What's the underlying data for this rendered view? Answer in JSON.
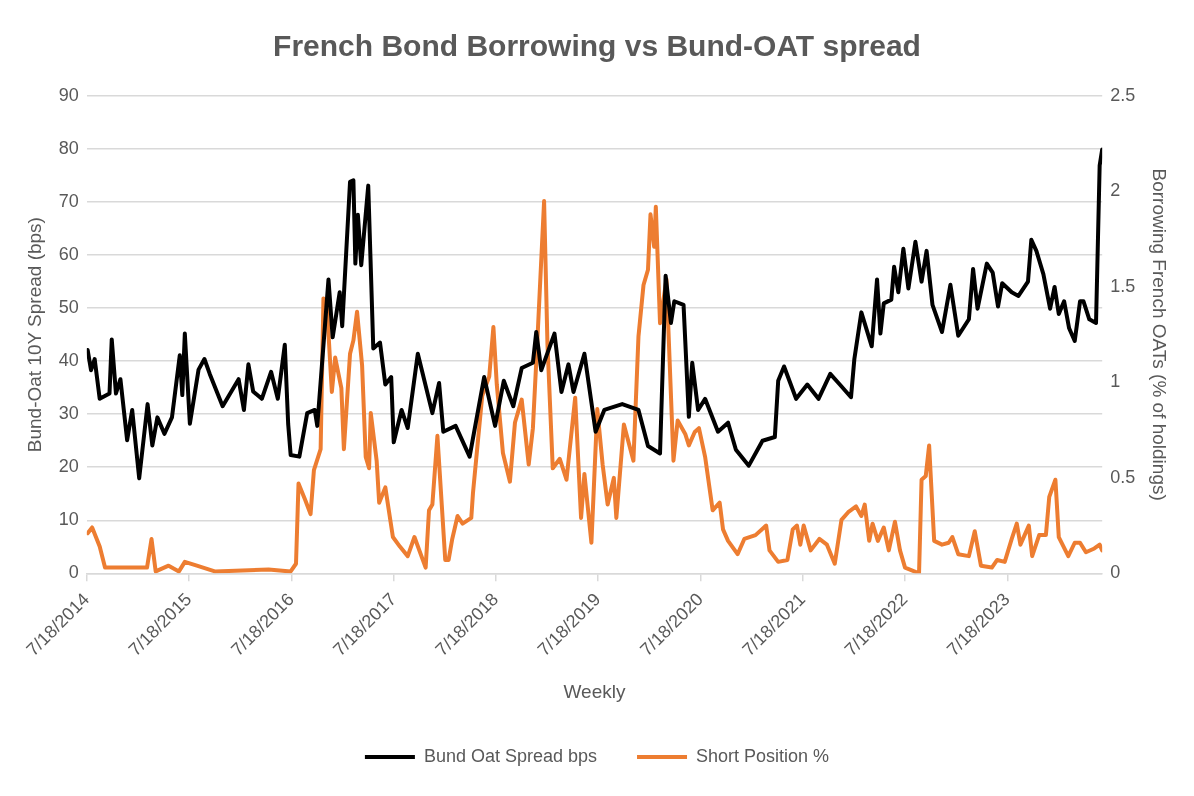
{
  "chart_data": {
    "type": "line",
    "title": "French Bond Borrowing vs Bund-OAT spread",
    "xlabel": "Weekly",
    "ylabel": "Bund-Oat 10Y Spread (bps)",
    "y2label": "Borrowing French OATs (% of holdings)",
    "xlim": [
      "2014-07-18",
      "2024-06-21"
    ],
    "xticks": [
      {
        "value": "2014-07-18",
        "label": "7/18/2014"
      },
      {
        "value": "2015-07-18",
        "label": "7/18/2015"
      },
      {
        "value": "2016-07-18",
        "label": "7/18/2016"
      },
      {
        "value": "2017-07-18",
        "label": "7/18/2017"
      },
      {
        "value": "2018-07-18",
        "label": "7/18/2018"
      },
      {
        "value": "2019-07-18",
        "label": "7/18/2019"
      },
      {
        "value": "2020-07-18",
        "label": "7/18/2020"
      },
      {
        "value": "2021-07-18",
        "label": "7/18/2021"
      },
      {
        "value": "2022-07-18",
        "label": "7/18/2022"
      },
      {
        "value": "2023-07-18",
        "label": "7/18/2023"
      }
    ],
    "ylim": [
      0,
      90
    ],
    "yticks": [
      0,
      10,
      20,
      30,
      40,
      50,
      60,
      70,
      80,
      90
    ],
    "y2lim": [
      0,
      2.5
    ],
    "y2ticks": [
      0,
      0.5,
      1,
      1.5,
      2,
      2.5
    ],
    "grid": "y",
    "legend": "bottom",
    "marker": "none",
    "line_style": "solid",
    "series": [
      {
        "name": "Bund Oat Spread bps",
        "color": "#000000",
        "axis": "y",
        "x": [
          "2014-07-21",
          "2014-08-02",
          "2014-08-15",
          "2014-09-02",
          "2014-10-07",
          "2014-10-15",
          "2014-10-30",
          "2014-11-15",
          "2014-12-09",
          "2014-12-27",
          "2015-01-21",
          "2015-02-20",
          "2015-03-09",
          "2015-03-27",
          "2015-04-21",
          "2015-05-18",
          "2015-06-15",
          "2015-06-24",
          "2015-07-03",
          "2015-07-21",
          "2015-08-21",
          "2015-09-11",
          "2015-09-30",
          "2015-11-15",
          "2016-01-11",
          "2016-01-30",
          "2016-02-15",
          "2016-03-03",
          "2016-04-03",
          "2016-05-06",
          "2016-05-30",
          "2016-06-24",
          "2016-07-06",
          "2016-07-15",
          "2016-08-15",
          "2016-09-12",
          "2016-10-09",
          "2016-10-18",
          "2016-11-27",
          "2016-12-12",
          "2017-01-06",
          "2017-01-15",
          "2017-02-12",
          "2017-02-24",
          "2017-03-03",
          "2017-03-12",
          "2017-03-24",
          "2017-04-18",
          "2017-05-06",
          "2017-05-30",
          "2017-06-18",
          "2017-07-09",
          "2017-07-18",
          "2017-08-15",
          "2017-09-06",
          "2017-10-12",
          "2017-12-03",
          "2017-12-27",
          "2018-01-11",
          "2018-02-24",
          "2018-04-15",
          "2018-06-06",
          "2018-07-15",
          "2018-08-15",
          "2018-09-18",
          "2018-10-18",
          "2018-11-27",
          "2018-12-09",
          "2018-12-27",
          "2019-02-12",
          "2019-03-09",
          "2019-04-03",
          "2019-04-21",
          "2019-05-30",
          "2019-07-09",
          "2019-08-09",
          "2019-10-12",
          "2019-12-09",
          "2020-01-12",
          "2020-02-24",
          "2020-03-15",
          "2020-04-03",
          "2020-04-15",
          "2020-05-18",
          "2020-06-06",
          "2020-06-18",
          "2020-07-09",
          "2020-08-03",
          "2020-09-18",
          "2020-10-24",
          "2020-11-21",
          "2021-01-06",
          "2021-02-24",
          "2021-04-09",
          "2021-04-21",
          "2021-05-12",
          "2021-06-24",
          "2021-08-03",
          "2021-09-12",
          "2021-10-24",
          "2021-11-27",
          "2022-01-06",
          "2022-01-18",
          "2022-02-12",
          "2022-03-21",
          "2022-04-09",
          "2022-04-21",
          "2022-05-03",
          "2022-05-30",
          "2022-06-09",
          "2022-06-24",
          "2022-07-12",
          "2022-07-30",
          "2022-08-24",
          "2022-09-15",
          "2022-10-03",
          "2022-10-24",
          "2022-11-27",
          "2022-12-27",
          "2023-01-24",
          "2023-03-03",
          "2023-03-18",
          "2023-04-03",
          "2023-05-06",
          "2023-05-27",
          "2023-06-15",
          "2023-06-30",
          "2023-08-03",
          "2023-08-27",
          "2023-09-30",
          "2023-10-12",
          "2023-10-30",
          "2023-11-24",
          "2023-12-18",
          "2024-01-03",
          "2024-01-18",
          "2024-02-06",
          "2024-02-24",
          "2024-03-15",
          "2024-04-03",
          "2024-04-15",
          "2024-05-06",
          "2024-05-30",
          "2024-06-12",
          "2024-06-21"
        ],
        "values": [
          42.1,
          38.3,
          40.4,
          32.9,
          33.9,
          44.1,
          33.9,
          36.6,
          25.1,
          30.8,
          17.9,
          31.9,
          24.1,
          29.4,
          26.3,
          29.4,
          41.1,
          33.6,
          45.2,
          28.2,
          38.4,
          40.4,
          37.6,
          31.5,
          36.6,
          30.8,
          39.4,
          34.3,
          32.9,
          38,
          32.9,
          43.1,
          28.2,
          22.3,
          22,
          30.2,
          30.8,
          27.8,
          55.4,
          44.5,
          53,
          46.6,
          73.8,
          74.1,
          58.4,
          67.6,
          58.1,
          73.1,
          42.4,
          43.5,
          35.6,
          37,
          24.7,
          30.8,
          27.4,
          41.4,
          30.2,
          35.9,
          26.7,
          27.8,
          22,
          37,
          27.8,
          36.3,
          31.5,
          38.7,
          39.7,
          45.5,
          38.3,
          45.2,
          34.2,
          39.4,
          34.2,
          41.4,
          26.7,
          30.8,
          31.9,
          30.8,
          24,
          22.6,
          56.1,
          47.2,
          51.3,
          50.6,
          29.5,
          39.7,
          30.8,
          32.9,
          26.7,
          28.4,
          23.3,
          20.3,
          25,
          25.7,
          36.3,
          39,
          32.9,
          35.6,
          32.9,
          37.6,
          35.6,
          33.2,
          40.4,
          49.2,
          42.8,
          55.4,
          45.2,
          50.9,
          51.6,
          57.8,
          53,
          61.2,
          53.7,
          62.5,
          55,
          60.8,
          50.6,
          45.5,
          54.4,
          44.8,
          47.9,
          57.4,
          49.9,
          58.4,
          56.7,
          50.3,
          54.7,
          53,
          52.3,
          55,
          62.9,
          60.8,
          56.4,
          49.9,
          54,
          48.9,
          51.3,
          46.2,
          43.8,
          51.3,
          51.3,
          47.9,
          47.2,
          76.9,
          79.9
        ]
      },
      {
        "name": "Short Position %",
        "color": "#ed7d31",
        "axis": "y2",
        "x": [
          "2014-07-21",
          "2014-08-06",
          "2014-09-02",
          "2014-09-21",
          "2015-02-18",
          "2015-03-06",
          "2015-03-21",
          "2015-05-06",
          "2015-06-12",
          "2015-07-03",
          "2015-08-15",
          "2015-10-18",
          "2016-04-27",
          "2016-07-15",
          "2016-08-03",
          "2016-08-12",
          "2016-09-06",
          "2016-09-24",
          "2016-10-06",
          "2016-10-30",
          "2016-11-09",
          "2016-11-21",
          "2016-12-09",
          "2016-12-21",
          "2017-01-12",
          "2017-01-21",
          "2017-02-12",
          "2017-02-24",
          "2017-03-09",
          "2017-03-27",
          "2017-04-09",
          "2017-04-21",
          "2017-04-27",
          "2017-05-18",
          "2017-05-27",
          "2017-06-18",
          "2017-07-15",
          "2017-08-09",
          "2017-09-06",
          "2017-09-30",
          "2017-11-09",
          "2017-11-21",
          "2017-12-03",
          "2017-12-21",
          "2018-01-18",
          "2018-01-30",
          "2018-02-12",
          "2018-03-03",
          "2018-03-21",
          "2018-04-21",
          "2018-04-27",
          "2018-05-30",
          "2018-06-24",
          "2018-07-09",
          "2018-07-21",
          "2018-08-12",
          "2018-09-06",
          "2018-09-24",
          "2018-10-18",
          "2018-11-12",
          "2018-11-27",
          "2018-12-15",
          "2019-01-06",
          "2019-01-18",
          "2019-02-06",
          "2019-03-03",
          "2019-03-27",
          "2019-04-27",
          "2019-05-18",
          "2019-05-30",
          "2019-06-24",
          "2019-07-15",
          "2019-08-03",
          "2019-08-21",
          "2019-09-12",
          "2019-09-21",
          "2019-10-18",
          "2019-11-21",
          "2019-12-09",
          "2019-12-27",
          "2020-01-12",
          "2020-01-21",
          "2020-02-03",
          "2020-02-09",
          "2020-02-24",
          "2020-03-18",
          "2020-04-12",
          "2020-04-27",
          "2020-05-24",
          "2020-06-06",
          "2020-06-27",
          "2020-07-12",
          "2020-08-03",
          "2020-08-30",
          "2020-09-24",
          "2020-10-06",
          "2020-10-24",
          "2020-11-27",
          "2020-12-21",
          "2021-01-30",
          "2021-03-09",
          "2021-03-21",
          "2021-04-21",
          "2021-05-24",
          "2021-06-12",
          "2021-06-27",
          "2021-07-09",
          "2021-07-21",
          "2021-08-15",
          "2021-09-15",
          "2021-10-12",
          "2021-11-09",
          "2021-12-03",
          "2021-12-27",
          "2022-01-24",
          "2022-02-12",
          "2022-02-24",
          "2022-03-12",
          "2022-03-24",
          "2022-04-12",
          "2022-05-03",
          "2022-05-21",
          "2022-06-12",
          "2022-06-30",
          "2022-07-18",
          "2022-09-06",
          "2022-09-15",
          "2022-09-30",
          "2022-10-12",
          "2022-10-30",
          "2022-11-27",
          "2022-12-21",
          "2023-01-03",
          "2023-01-24",
          "2023-03-03",
          "2023-03-24",
          "2023-04-15",
          "2023-05-24",
          "2023-06-12",
          "2023-07-09",
          "2023-08-03",
          "2023-08-21",
          "2023-09-03",
          "2023-10-03",
          "2023-10-15",
          "2023-11-09",
          "2023-12-03",
          "2023-12-15",
          "2024-01-06",
          "2024-01-18",
          "2024-02-21",
          "2024-03-15",
          "2024-04-03",
          "2024-04-24",
          "2024-05-24",
          "2024-06-12",
          "2024-06-21"
        ],
        "values": [
          0.21,
          0.24,
          0.14,
          0.03,
          0.03,
          0.18,
          0.01,
          0.04,
          0.01,
          0.06,
          0.04,
          0.01,
          0.02,
          0.01,
          0.05,
          0.47,
          0.38,
          0.31,
          0.54,
          0.65,
          1.44,
          1.41,
          0.95,
          1.13,
          0.97,
          0.65,
          1.15,
          1.22,
          1.37,
          1.09,
          0.61,
          0.55,
          0.84,
          0.59,
          0.37,
          0.45,
          0.19,
          0.14,
          0.09,
          0.19,
          0.03,
          0.33,
          0.36,
          0.72,
          0.07,
          0.07,
          0.18,
          0.3,
          0.26,
          0.29,
          0.42,
          0.93,
          1.03,
          1.29,
          0.99,
          0.63,
          0.48,
          0.79,
          0.91,
          0.57,
          0.76,
          1.28,
          1.95,
          1.2,
          0.55,
          0.6,
          0.49,
          0.92,
          0.29,
          0.52,
          0.16,
          0.86,
          0.57,
          0.36,
          0.5,
          0.29,
          0.78,
          0.59,
          1.24,
          1.51,
          1.59,
          1.88,
          1.71,
          1.92,
          1.31,
          1.54,
          0.59,
          0.8,
          0.73,
          0.67,
          0.74,
          0.76,
          0.61,
          0.33,
          0.37,
          0.23,
          0.17,
          0.1,
          0.18,
          0.2,
          0.25,
          0.12,
          0.06,
          0.07,
          0.23,
          0.25,
          0.15,
          0.25,
          0.12,
          0.18,
          0.15,
          0.05,
          0.28,
          0.32,
          0.35,
          0.3,
          0.36,
          0.17,
          0.26,
          0.17,
          0.24,
          0.12,
          0.27,
          0.12,
          0.03,
          0,
          0.49,
          0.51,
          0.67,
          0.17,
          0.15,
          0.16,
          0.19,
          0.1,
          0.09,
          0.22,
          0.04,
          0.03,
          0.07,
          0.06,
          0.18,
          0.26,
          0.15,
          0.25,
          0.09,
          0.2,
          0.2,
          0.4,
          0.49,
          0.19,
          0.09,
          0.16,
          0.16,
          0.11,
          0.13,
          0.15,
          0.12
        ]
      }
    ]
  }
}
